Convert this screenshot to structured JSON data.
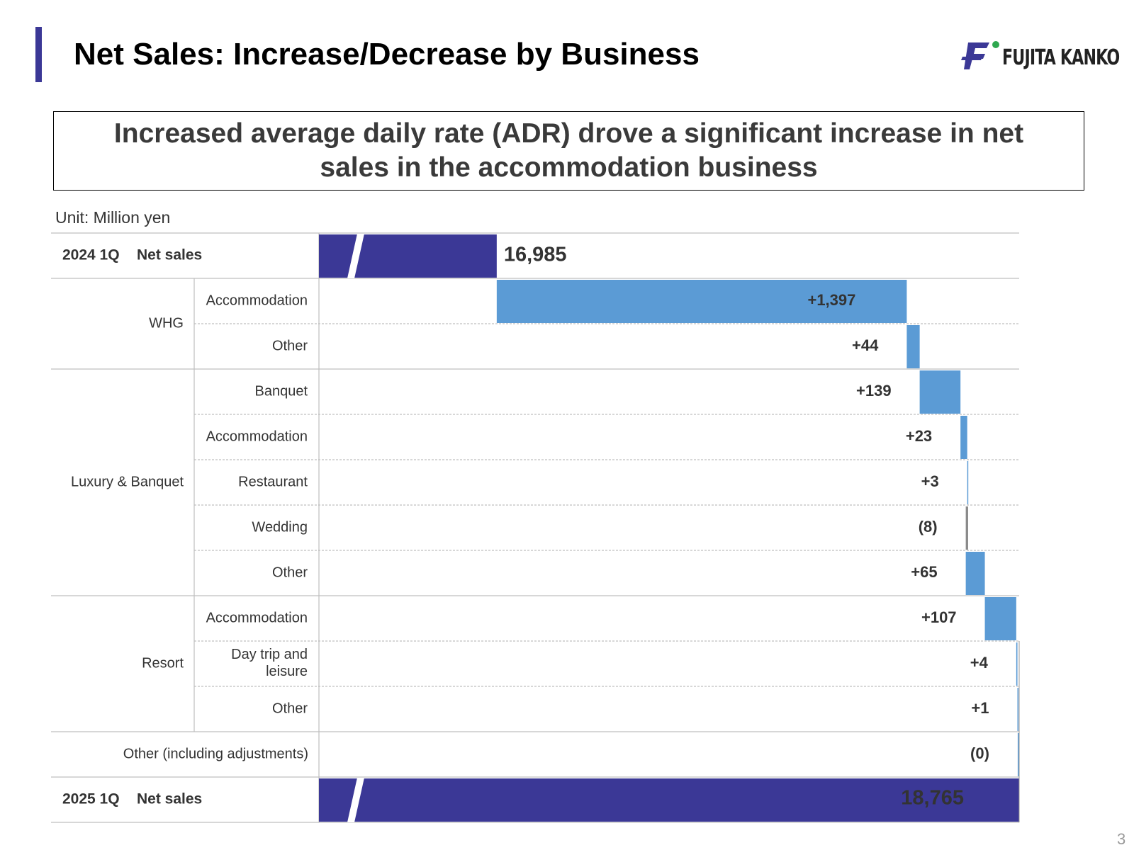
{
  "page": {
    "title": "Net Sales: Increase/Decrease by Business",
    "headline": "Increased average daily rate (ADR) drove a significant increase in net sales in the accommodation business",
    "unit": "Unit: Million yen",
    "page_number": "3",
    "logo_text": "FUJITA KANKO"
  },
  "colors": {
    "total_bar": "#3b3896",
    "change_bar": "#5b9bd5",
    "title_accent": "#3b3896",
    "logo_green": "#2fa84f"
  },
  "chart_data": {
    "type": "bar",
    "orientation": "horizontal",
    "style": "waterfall",
    "unit": "Million yen",
    "start": {
      "label_year": "2024 1Q",
      "label_text": "Net sales",
      "value": 16985,
      "display": "16,985"
    },
    "end": {
      "label_year": "2025 1Q",
      "label_text": "Net sales",
      "value": 18765,
      "display": "18,765"
    },
    "groups": [
      {
        "name": "WHG",
        "items": [
          {
            "name": "Accommodation",
            "value": 1397,
            "display": "+1,397"
          },
          {
            "name": "Other",
            "value": 44,
            "display": "+44"
          }
        ]
      },
      {
        "name": "Luxury & Banquet",
        "items": [
          {
            "name": "Banquet",
            "value": 139,
            "display": "+139"
          },
          {
            "name": "Accommodation",
            "value": 23,
            "display": "+23"
          },
          {
            "name": "Restaurant",
            "value": 3,
            "display": "+3"
          },
          {
            "name": "Wedding",
            "value": -8,
            "display": "(8)"
          },
          {
            "name": "Other",
            "value": 65,
            "display": "+65"
          }
        ]
      },
      {
        "name": "Resort",
        "items": [
          {
            "name": "Accommodation",
            "value": 107,
            "display": "+107"
          },
          {
            "name": "Day trip and leisure",
            "value": 4,
            "display": "+4"
          },
          {
            "name": "Other",
            "value": 1,
            "display": "+1"
          }
        ]
      },
      {
        "name": "Other (including adjustments)",
        "items": [
          {
            "name": "",
            "value": 0,
            "display": "(0)"
          }
        ]
      }
    ],
    "axis_break": true,
    "axis_range": [
      16500,
      18765
    ],
    "grid": true,
    "legend": "none"
  }
}
